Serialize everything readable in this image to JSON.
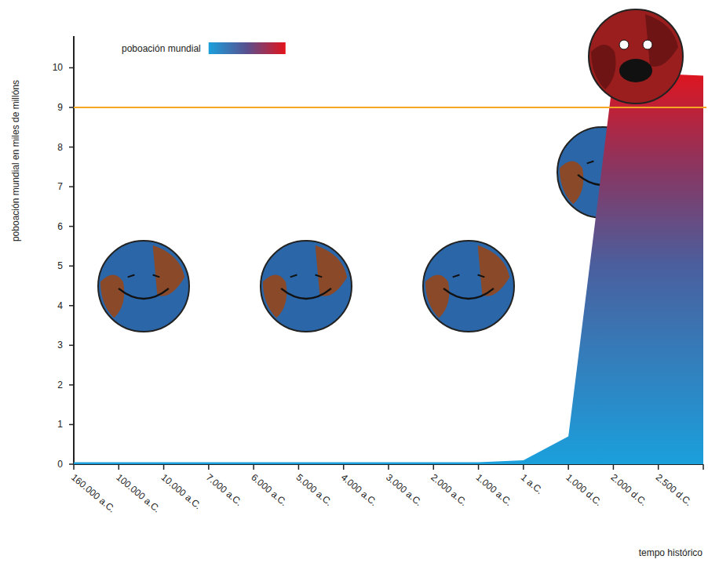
{
  "chart_data": {
    "type": "area",
    "y_label": "poboación mundial en miles de millóns",
    "x_label": "tempo histórico",
    "categories": [
      "160.000 a.C.",
      "100.000 a.C.",
      "10.000 a.C.",
      "7.000 a.C.",
      "6.000 a.C.",
      "5.000 a.C.",
      "4.000 a.C.",
      "3.000 a.C.",
      "2.000 a.C.",
      "1.000 a.C.",
      "1 a.C.",
      "1.000 d.C.",
      "2.000 d.C.",
      "2.500 d.C.",
      null
    ],
    "series": [
      {
        "name": "poboación mundial",
        "colors": [
          "#1aa0dc",
          "#e3131b"
        ],
        "values": [
          0.05,
          0.05,
          0.05,
          0.05,
          0.05,
          0.05,
          0.05,
          0.05,
          0.05,
          0.05,
          0.1,
          0.7,
          9.8,
          9.85,
          9.8
        ]
      }
    ],
    "reference_line": {
      "value": 9,
      "color": "#f5a623"
    },
    "ylim": [
      0,
      10.8
    ],
    "yticks": [
      0,
      1,
      2,
      3,
      4,
      5,
      6,
      7,
      8,
      9,
      10
    ],
    "grid": false,
    "legend": "top-left"
  }
}
